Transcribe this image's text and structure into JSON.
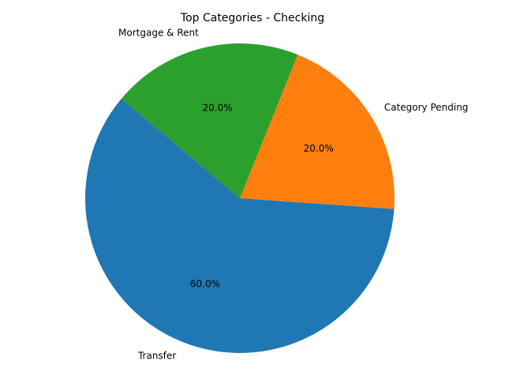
{
  "chart_data": {
    "type": "pie",
    "title": "Top Categories - Checking",
    "slices": [
      {
        "label": "Transfer",
        "value": 60.0,
        "pct_text": "60.0%",
        "color": "#1f77b4"
      },
      {
        "label": "Category Pending",
        "value": 20.0,
        "pct_text": "20.0%",
        "color": "#ff7f0e"
      },
      {
        "label": "Mortgage & Rent",
        "value": 20.0,
        "pct_text": "20.0%",
        "color": "#2ca02c"
      }
    ],
    "start_angle_deg": 140,
    "direction": "counterclockwise",
    "legend": "none"
  }
}
